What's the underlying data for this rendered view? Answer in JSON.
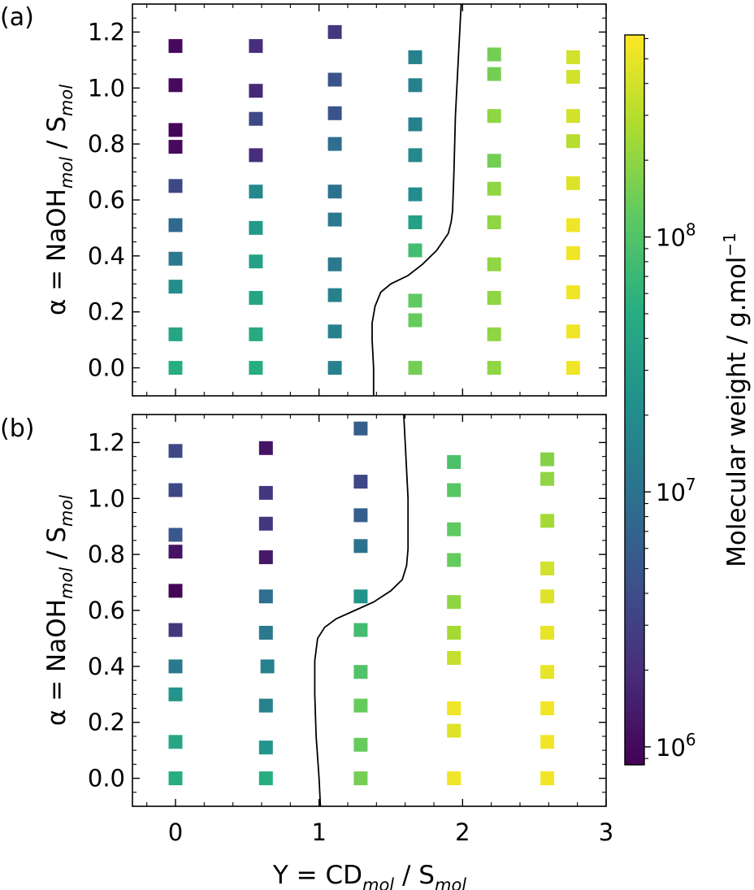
{
  "figure": {
    "xlabel_main": "Y = CD",
    "xlabel_sub1": "mol",
    "xlabel_mid": " / S",
    "xlabel_sub2": "mol",
    "ylabel_main": "α = NaOH",
    "ylabel_sub1": "mol",
    "ylabel_mid": " / S",
    "ylabel_sub2": "mol",
    "colorbar_label_main": "Molecular weight / g.mol",
    "colorbar_label_sup": "−1",
    "colorbar_ticks": [
      {
        "value": 1000000,
        "label_base": "10",
        "label_exp": "6"
      },
      {
        "value": 10000000,
        "label_base": "10",
        "label_exp": "7"
      },
      {
        "value": 100000000,
        "label_base": "10",
        "label_exp": "8"
      }
    ],
    "colorbar_range": [
      850000,
      620000000
    ],
    "colormap": "viridis"
  },
  "chart_data": [
    {
      "type": "scatter",
      "panel_label": "(a)",
      "xlim": [
        -0.3,
        3.0
      ],
      "ylim": [
        -0.1,
        1.3
      ],
      "xticks": [
        0,
        1,
        2,
        3
      ],
      "xtick_labels": [
        "0",
        "1",
        "2",
        "3"
      ],
      "yticks": [
        0.0,
        0.2,
        0.4,
        0.6,
        0.8,
        1.0,
        1.2
      ],
      "ytick_labels": [
        "0.0",
        "0.2",
        "0.4",
        "0.6",
        "0.8",
        "1.0",
        "1.2"
      ],
      "boundary": [
        [
          1.38,
          -0.1
        ],
        [
          1.38,
          0.0
        ],
        [
          1.37,
          0.1
        ],
        [
          1.37,
          0.16
        ],
        [
          1.39,
          0.22
        ],
        [
          1.43,
          0.27
        ],
        [
          1.5,
          0.3
        ],
        [
          1.62,
          0.33
        ],
        [
          1.72,
          0.37
        ],
        [
          1.82,
          0.42
        ],
        [
          1.9,
          0.48
        ],
        [
          1.92,
          0.52
        ],
        [
          1.93,
          0.56
        ],
        [
          1.94,
          0.7
        ],
        [
          1.95,
          0.9
        ],
        [
          1.97,
          1.1
        ],
        [
          1.99,
          1.3
        ]
      ],
      "points": [
        {
          "x": 0.0,
          "y": 1.15,
          "mw": 1000000
        },
        {
          "x": 0.0,
          "y": 1.01,
          "mw": 1000000
        },
        {
          "x": 0.0,
          "y": 0.85,
          "mw": 900000
        },
        {
          "x": 0.0,
          "y": 0.79,
          "mw": 1000000
        },
        {
          "x": 0.0,
          "y": 0.65,
          "mw": 3500000
        },
        {
          "x": 0.0,
          "y": 0.51,
          "mw": 8000000
        },
        {
          "x": 0.0,
          "y": 0.39,
          "mw": 12000000
        },
        {
          "x": 0.0,
          "y": 0.29,
          "mw": 20000000
        },
        {
          "x": 0.0,
          "y": 0.12,
          "mw": 40000000
        },
        {
          "x": 0.0,
          "y": 0.0,
          "mw": 50000000
        },
        {
          "x": 0.56,
          "y": 1.15,
          "mw": 2000000
        },
        {
          "x": 0.56,
          "y": 0.99,
          "mw": 1800000
        },
        {
          "x": 0.56,
          "y": 0.89,
          "mw": 3500000
        },
        {
          "x": 0.56,
          "y": 0.76,
          "mw": 2000000
        },
        {
          "x": 0.56,
          "y": 0.63,
          "mw": 18000000
        },
        {
          "x": 0.56,
          "y": 0.5,
          "mw": 30000000
        },
        {
          "x": 0.56,
          "y": 0.38,
          "mw": 35000000
        },
        {
          "x": 0.56,
          "y": 0.25,
          "mw": 40000000
        },
        {
          "x": 0.56,
          "y": 0.12,
          "mw": 45000000
        },
        {
          "x": 0.56,
          "y": 0.0,
          "mw": 50000000
        },
        {
          "x": 1.11,
          "y": 1.2,
          "mw": 2500000
        },
        {
          "x": 1.11,
          "y": 1.03,
          "mw": 4500000
        },
        {
          "x": 1.11,
          "y": 0.91,
          "mw": 4500000
        },
        {
          "x": 1.11,
          "y": 0.8,
          "mw": 9000000
        },
        {
          "x": 1.11,
          "y": 0.63,
          "mw": 10000000
        },
        {
          "x": 1.11,
          "y": 0.53,
          "mw": 12000000
        },
        {
          "x": 1.11,
          "y": 0.37,
          "mw": 12000000
        },
        {
          "x": 1.11,
          "y": 0.26,
          "mw": 15000000
        },
        {
          "x": 1.11,
          "y": 0.13,
          "mw": 15000000
        },
        {
          "x": 1.11,
          "y": 0.0,
          "mw": 15000000
        },
        {
          "x": 1.67,
          "y": 1.11,
          "mw": 15000000
        },
        {
          "x": 1.67,
          "y": 1.01,
          "mw": 15000000
        },
        {
          "x": 1.67,
          "y": 0.87,
          "mw": 15000000
        },
        {
          "x": 1.67,
          "y": 0.76,
          "mw": 18000000
        },
        {
          "x": 1.67,
          "y": 0.62,
          "mw": 20000000
        },
        {
          "x": 1.67,
          "y": 0.52,
          "mw": 35000000
        },
        {
          "x": 1.67,
          "y": 0.42,
          "mw": 80000000
        },
        {
          "x": 1.67,
          "y": 0.24,
          "mw": 120000000
        },
        {
          "x": 1.67,
          "y": 0.17,
          "mw": 130000000
        },
        {
          "x": 1.67,
          "y": 0.0,
          "mw": 150000000
        },
        {
          "x": 2.22,
          "y": 1.12,
          "mw": 150000000
        },
        {
          "x": 2.22,
          "y": 1.05,
          "mw": 150000000
        },
        {
          "x": 2.22,
          "y": 0.9,
          "mw": 200000000
        },
        {
          "x": 2.22,
          "y": 0.74,
          "mw": 150000000
        },
        {
          "x": 2.22,
          "y": 0.64,
          "mw": 200000000
        },
        {
          "x": 2.22,
          "y": 0.52,
          "mw": 200000000
        },
        {
          "x": 2.22,
          "y": 0.37,
          "mw": 200000000
        },
        {
          "x": 2.22,
          "y": 0.25,
          "mw": 200000000
        },
        {
          "x": 2.22,
          "y": 0.12,
          "mw": 200000000
        },
        {
          "x": 2.22,
          "y": 0.0,
          "mw": 200000000
        },
        {
          "x": 2.77,
          "y": 1.11,
          "mw": 400000000
        },
        {
          "x": 2.77,
          "y": 1.04,
          "mw": 400000000
        },
        {
          "x": 2.77,
          "y": 0.9,
          "mw": 400000000
        },
        {
          "x": 2.77,
          "y": 0.81,
          "mw": 300000000
        },
        {
          "x": 2.77,
          "y": 0.66,
          "mw": 450000000
        },
        {
          "x": 2.77,
          "y": 0.51,
          "mw": 550000000
        },
        {
          "x": 2.77,
          "y": 0.41,
          "mw": 550000000
        },
        {
          "x": 2.77,
          "y": 0.27,
          "mw": 550000000
        },
        {
          "x": 2.77,
          "y": 0.13,
          "mw": 550000000
        },
        {
          "x": 2.77,
          "y": 0.0,
          "mw": 550000000
        }
      ]
    },
    {
      "type": "scatter",
      "panel_label": "(b)",
      "xlim": [
        -0.3,
        3.0
      ],
      "ylim": [
        -0.1,
        1.3
      ],
      "xticks": [
        0,
        1,
        2,
        3
      ],
      "xtick_labels": [
        "0",
        "1",
        "2",
        "3"
      ],
      "yticks": [
        0.0,
        0.2,
        0.4,
        0.6,
        0.8,
        1.0,
        1.2
      ],
      "ytick_labels": [
        "0.0",
        "0.2",
        "0.4",
        "0.6",
        "0.8",
        "1.0",
        "1.2"
      ],
      "boundary": [
        [
          1.01,
          -0.1
        ],
        [
          1.0,
          0.0
        ],
        [
          0.98,
          0.15
        ],
        [
          0.97,
          0.3
        ],
        [
          0.97,
          0.42
        ],
        [
          0.99,
          0.5
        ],
        [
          1.04,
          0.54
        ],
        [
          1.12,
          0.57
        ],
        [
          1.25,
          0.6
        ],
        [
          1.38,
          0.63
        ],
        [
          1.5,
          0.67
        ],
        [
          1.58,
          0.71
        ],
        [
          1.61,
          0.76
        ],
        [
          1.62,
          0.82
        ],
        [
          1.62,
          1.0
        ],
        [
          1.6,
          1.2
        ],
        [
          1.59,
          1.3
        ]
      ],
      "points": [
        {
          "x": 0.0,
          "y": 1.17,
          "mw": 3500000
        },
        {
          "x": 0.0,
          "y": 1.03,
          "mw": 3500000
        },
        {
          "x": 0.0,
          "y": 0.87,
          "mw": 5000000
        },
        {
          "x": 0.0,
          "y": 0.81,
          "mw": 1200000
        },
        {
          "x": 0.0,
          "y": 0.67,
          "mw": 900000
        },
        {
          "x": 0.0,
          "y": 0.53,
          "mw": 2500000
        },
        {
          "x": 0.0,
          "y": 0.4,
          "mw": 12000000
        },
        {
          "x": 0.0,
          "y": 0.3,
          "mw": 25000000
        },
        {
          "x": 0.0,
          "y": 0.13,
          "mw": 40000000
        },
        {
          "x": 0.0,
          "y": 0.0,
          "mw": 50000000
        },
        {
          "x": 0.63,
          "y": 1.18,
          "mw": 1200000
        },
        {
          "x": 0.63,
          "y": 1.02,
          "mw": 2500000
        },
        {
          "x": 0.63,
          "y": 0.91,
          "mw": 2500000
        },
        {
          "x": 0.63,
          "y": 0.79,
          "mw": 1300000
        },
        {
          "x": 0.63,
          "y": 0.65,
          "mw": 9000000
        },
        {
          "x": 0.63,
          "y": 0.52,
          "mw": 12000000
        },
        {
          "x": 0.64,
          "y": 0.4,
          "mw": 15000000
        },
        {
          "x": 0.63,
          "y": 0.26,
          "mw": 15000000
        },
        {
          "x": 0.63,
          "y": 0.11,
          "mw": 25000000
        },
        {
          "x": 0.63,
          "y": 0.0,
          "mw": 50000000
        },
        {
          "x": 1.29,
          "y": 1.25,
          "mw": 6000000
        },
        {
          "x": 1.29,
          "y": 1.06,
          "mw": 3500000
        },
        {
          "x": 1.29,
          "y": 0.94,
          "mw": 6000000
        },
        {
          "x": 1.29,
          "y": 0.83,
          "mw": 10000000
        },
        {
          "x": 1.29,
          "y": 0.65,
          "mw": 25000000
        },
        {
          "x": 1.29,
          "y": 0.53,
          "mw": 80000000
        },
        {
          "x": 1.29,
          "y": 0.38,
          "mw": 100000000
        },
        {
          "x": 1.29,
          "y": 0.26,
          "mw": 130000000
        },
        {
          "x": 1.29,
          "y": 0.12,
          "mw": 130000000
        },
        {
          "x": 1.29,
          "y": 0.0,
          "mw": 150000000
        },
        {
          "x": 1.94,
          "y": 1.13,
          "mw": 90000000
        },
        {
          "x": 1.94,
          "y": 1.03,
          "mw": 110000000
        },
        {
          "x": 1.94,
          "y": 0.89,
          "mw": 120000000
        },
        {
          "x": 1.94,
          "y": 0.78,
          "mw": 130000000
        },
        {
          "x": 1.94,
          "y": 0.63,
          "mw": 200000000
        },
        {
          "x": 1.94,
          "y": 0.52,
          "mw": 250000000
        },
        {
          "x": 1.94,
          "y": 0.43,
          "mw": 350000000
        },
        {
          "x": 1.94,
          "y": 0.25,
          "mw": 550000000
        },
        {
          "x": 1.94,
          "y": 0.17,
          "mw": 450000000
        },
        {
          "x": 1.94,
          "y": 0.0,
          "mw": 550000000
        },
        {
          "x": 2.59,
          "y": 1.14,
          "mw": 180000000
        },
        {
          "x": 2.59,
          "y": 1.07,
          "mw": 200000000
        },
        {
          "x": 2.59,
          "y": 0.92,
          "mw": 250000000
        },
        {
          "x": 2.59,
          "y": 0.75,
          "mw": 400000000
        },
        {
          "x": 2.59,
          "y": 0.65,
          "mw": 450000000
        },
        {
          "x": 2.59,
          "y": 0.52,
          "mw": 500000000
        },
        {
          "x": 2.59,
          "y": 0.38,
          "mw": 500000000
        },
        {
          "x": 2.59,
          "y": 0.25,
          "mw": 550000000
        },
        {
          "x": 2.59,
          "y": 0.13,
          "mw": 550000000
        },
        {
          "x": 2.59,
          "y": 0.0,
          "mw": 550000000
        }
      ]
    }
  ]
}
